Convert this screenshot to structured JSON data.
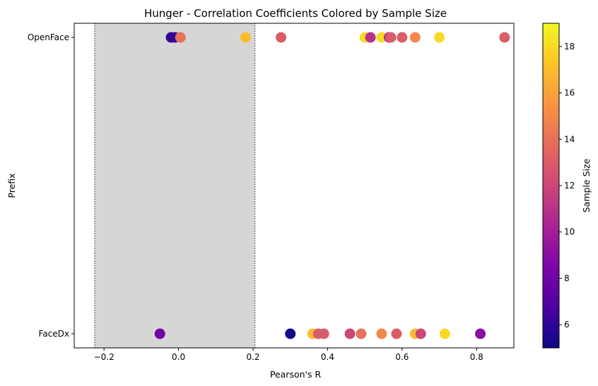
{
  "chart_data": {
    "type": "scatter",
    "title": "Hunger - Correlation Coefficients Colored by Sample Size",
    "xlabel": "Pearson's R",
    "ylabel": "Prefix",
    "xlim": [
      -0.28,
      0.9
    ],
    "x_ticks": [
      "−0.2",
      "0.0",
      "0.2",
      "0.4",
      "0.6",
      "0.8"
    ],
    "categories": [
      "FaceDx",
      "OpenFace"
    ],
    "shaded_region": {
      "from": -0.225,
      "to": 0.205,
      "color": "#d6d6d6"
    },
    "colorbar": {
      "label": "Sample Size",
      "range": [
        5,
        19
      ],
      "ticks": [
        "6",
        "8",
        "10",
        "12",
        "14",
        "16",
        "18"
      ],
      "colormap": "plasma"
    },
    "series": [
      {
        "category": "OpenFace",
        "points": [
          {
            "x": -0.02,
            "size": 6
          },
          {
            "x": -0.01,
            "size": 6
          },
          {
            "x": 0.005,
            "size": 14
          },
          {
            "x": 0.18,
            "size": 17
          },
          {
            "x": 0.275,
            "size": 13
          },
          {
            "x": 0.5,
            "size": 18
          },
          {
            "x": 0.515,
            "size": 11
          },
          {
            "x": 0.545,
            "size": 18
          },
          {
            "x": 0.565,
            "size": 11
          },
          {
            "x": 0.57,
            "size": 13
          },
          {
            "x": 0.6,
            "size": 13
          },
          {
            "x": 0.635,
            "size": 15
          },
          {
            "x": 0.7,
            "size": 18
          },
          {
            "x": 0.875,
            "size": 13
          }
        ]
      },
      {
        "category": "FaceDx",
        "points": [
          {
            "x": -0.05,
            "size": 8
          },
          {
            "x": 0.3,
            "size": 5
          },
          {
            "x": 0.36,
            "size": 17
          },
          {
            "x": 0.375,
            "size": 13
          },
          {
            "x": 0.39,
            "size": 13
          },
          {
            "x": 0.46,
            "size": 12
          },
          {
            "x": 0.49,
            "size": 14
          },
          {
            "x": 0.545,
            "size": 15
          },
          {
            "x": 0.585,
            "size": 13
          },
          {
            "x": 0.635,
            "size": 17
          },
          {
            "x": 0.65,
            "size": 12
          },
          {
            "x": 0.715,
            "size": 18
          },
          {
            "x": 0.81,
            "size": 9
          }
        ]
      }
    ],
    "grid": false,
    "legend": "none"
  }
}
